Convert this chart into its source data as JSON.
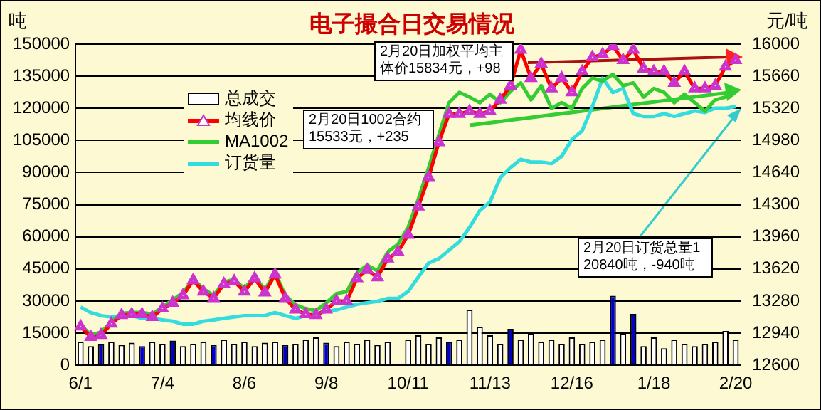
{
  "chart_data": {
    "type": "bar",
    "title": "电子撮合日交易情况",
    "ylabel": "吨",
    "y2label": "元/吨",
    "categories": [
      "6/1",
      null,
      null,
      null,
      null,
      null,
      null,
      null,
      "7/4",
      null,
      null,
      null,
      null,
      null,
      null,
      null,
      "8/6",
      null,
      null,
      null,
      null,
      null,
      null,
      null,
      "9/8",
      null,
      null,
      null,
      null,
      null,
      null,
      null,
      "10/11",
      null,
      null,
      null,
      null,
      null,
      null,
      null,
      "11/13",
      null,
      null,
      null,
      null,
      null,
      null,
      null,
      "12/16",
      null,
      null,
      null,
      null,
      null,
      null,
      null,
      "1/18",
      null,
      null,
      null,
      null,
      null,
      null,
      null,
      "2/20"
    ],
    "series": [
      {
        "name": "总成交",
        "type": "bar",
        "color": "#ffffff",
        "colors": [
          "#ffffff",
          "#ffffff",
          "#0000cc",
          "#ffffff",
          "#ffffff",
          "#ffffff",
          "#0000cc",
          "#ffffff",
          "#ffffff",
          "#0000cc",
          "#ffffff",
          "#ffffff",
          "#ffffff",
          "#0000cc",
          "#ffffff",
          "#ffffff",
          "#ffffff",
          "#ffffff",
          "#ffffff",
          "#ffffff",
          "#0000cc",
          "#ffffff",
          "#ffffff",
          "#ffffff",
          "#0000cc",
          "#ffffff",
          "#ffffff",
          "#ffffff",
          "#ffffff",
          "#ffffff",
          "#ffffff",
          "#ffffff",
          "#ffffff",
          "#ffffff",
          "#ffffff",
          "#ffffff",
          "#0000cc",
          "#ffffff",
          "#ffffff",
          "#ffffff",
          "#ffffff",
          "#ffffff",
          "#0000cc",
          "#ffffff",
          "#ffffff",
          "#ffffff",
          "#ffffff",
          "#ffffff",
          "#ffffff",
          "#ffffff",
          "#ffffff",
          "#ffffff",
          "#0000cc",
          "#ffffff",
          "#0000cc",
          "#ffffff",
          "#ffffff",
          "#ffffff",
          "#ffffff",
          "#ffffff",
          "#ffffff",
          "#ffffff",
          "#ffffff",
          "#ffffff",
          "#ffffff"
        ],
        "values": [
          11000,
          9000,
          10000,
          11000,
          9500,
          10500,
          9000,
          11000,
          10000,
          11500,
          9000,
          10000,
          11000,
          9500,
          12000,
          10000,
          11000,
          9000,
          10500,
          11000,
          9500,
          10000,
          12000,
          13000,
          10500,
          9000,
          11000,
          10000,
          12000,
          9500,
          11000,
          null,
          12000,
          14000,
          10000,
          13000,
          11000,
          12000,
          26000,
          18000,
          14000,
          10000,
          17000,
          12000,
          15000,
          11000,
          12000,
          10000,
          13000,
          10000,
          11000,
          12000,
          32500,
          15000,
          24000,
          9000,
          13000,
          8000,
          12000,
          10000,
          9000,
          10000,
          11000,
          16000,
          12000
        ]
      },
      {
        "name": "均线价",
        "type": "line",
        "axis": "y2",
        "color": "#ff0000",
        "marker": "triangle",
        "values": [
          13010,
          12900,
          12920,
          13040,
          13130,
          13140,
          13140,
          13110,
          13200,
          13260,
          13340,
          13500,
          13380,
          13310,
          13460,
          13490,
          13380,
          13520,
          13370,
          13560,
          13310,
          13190,
          13140,
          13130,
          13190,
          13280,
          13280,
          13520,
          13610,
          13530,
          13730,
          13800,
          13980,
          14280,
          14590,
          14960,
          15260,
          15260,
          15290,
          15260,
          15290,
          15410,
          15560,
          15940,
          15640,
          15790,
          15530,
          15640,
          15490,
          15710,
          15860,
          15890,
          15980,
          15830,
          15940,
          15740,
          15710,
          15710,
          15590,
          15710,
          15530,
          15530,
          15560,
          15760,
          15830
        ]
      },
      {
        "name": "MA1002",
        "type": "line",
        "axis": "y2",
        "color": "#33cc33",
        "values": [
          13030,
          12920,
          12950,
          13060,
          13150,
          13160,
          13160,
          13140,
          13220,
          13290,
          13370,
          13510,
          13410,
          13340,
          13480,
          13510,
          13410,
          13540,
          13400,
          13580,
          13340,
          13240,
          13200,
          13180,
          13260,
          13360,
          13380,
          13580,
          13660,
          13600,
          13800,
          13880,
          14060,
          14360,
          14690,
          15040,
          15380,
          15490,
          15440,
          15380,
          15470,
          15380,
          15500,
          15590,
          15410,
          15560,
          15320,
          15380,
          15320,
          15530,
          15640,
          15610,
          15680,
          15560,
          15590,
          15440,
          15530,
          15490,
          15380,
          15470,
          15380,
          15290,
          15410,
          15440,
          15530
        ]
      },
      {
        "name": "订货量",
        "type": "line",
        "color": "#33dddd",
        "values": [
          27200,
          24600,
          23200,
          22600,
          23200,
          23200,
          21900,
          21900,
          21200,
          20600,
          19200,
          19200,
          20600,
          21200,
          21900,
          22600,
          23200,
          23200,
          23200,
          24600,
          23200,
          21900,
          23200,
          23900,
          25200,
          25900,
          27200,
          28500,
          29200,
          29900,
          31200,
          31200,
          34500,
          41200,
          47800,
          49800,
          53800,
          57700,
          64400,
          72300,
          76300,
          87600,
          92300,
          96200,
          94900,
          94900,
          94200,
          97600,
          105500,
          109500,
          120800,
          134100,
          127400,
          129400,
          117500,
          116200,
          116200,
          117500,
          116200,
          117500,
          118800,
          118100,
          120100,
          120100,
          120800
        ]
      }
    ],
    "ylim": [
      0,
      150000
    ],
    "yticks": [
      0,
      15000,
      30000,
      45000,
      60000,
      75000,
      90000,
      105000,
      120000,
      135000,
      150000
    ],
    "y2lim": [
      12600,
      16000
    ],
    "y2ticks": [
      12600,
      12940,
      13280,
      13620,
      13960,
      14300,
      14640,
      14980,
      15320,
      15660,
      16000
    ],
    "grid": "y",
    "legend": "top left",
    "annotations": [
      "2月20日加权平均主体价15834元，+98",
      "2月20日1002合约15533元，+235",
      "2月20日订货总量120840吨，-940吨"
    ]
  }
}
